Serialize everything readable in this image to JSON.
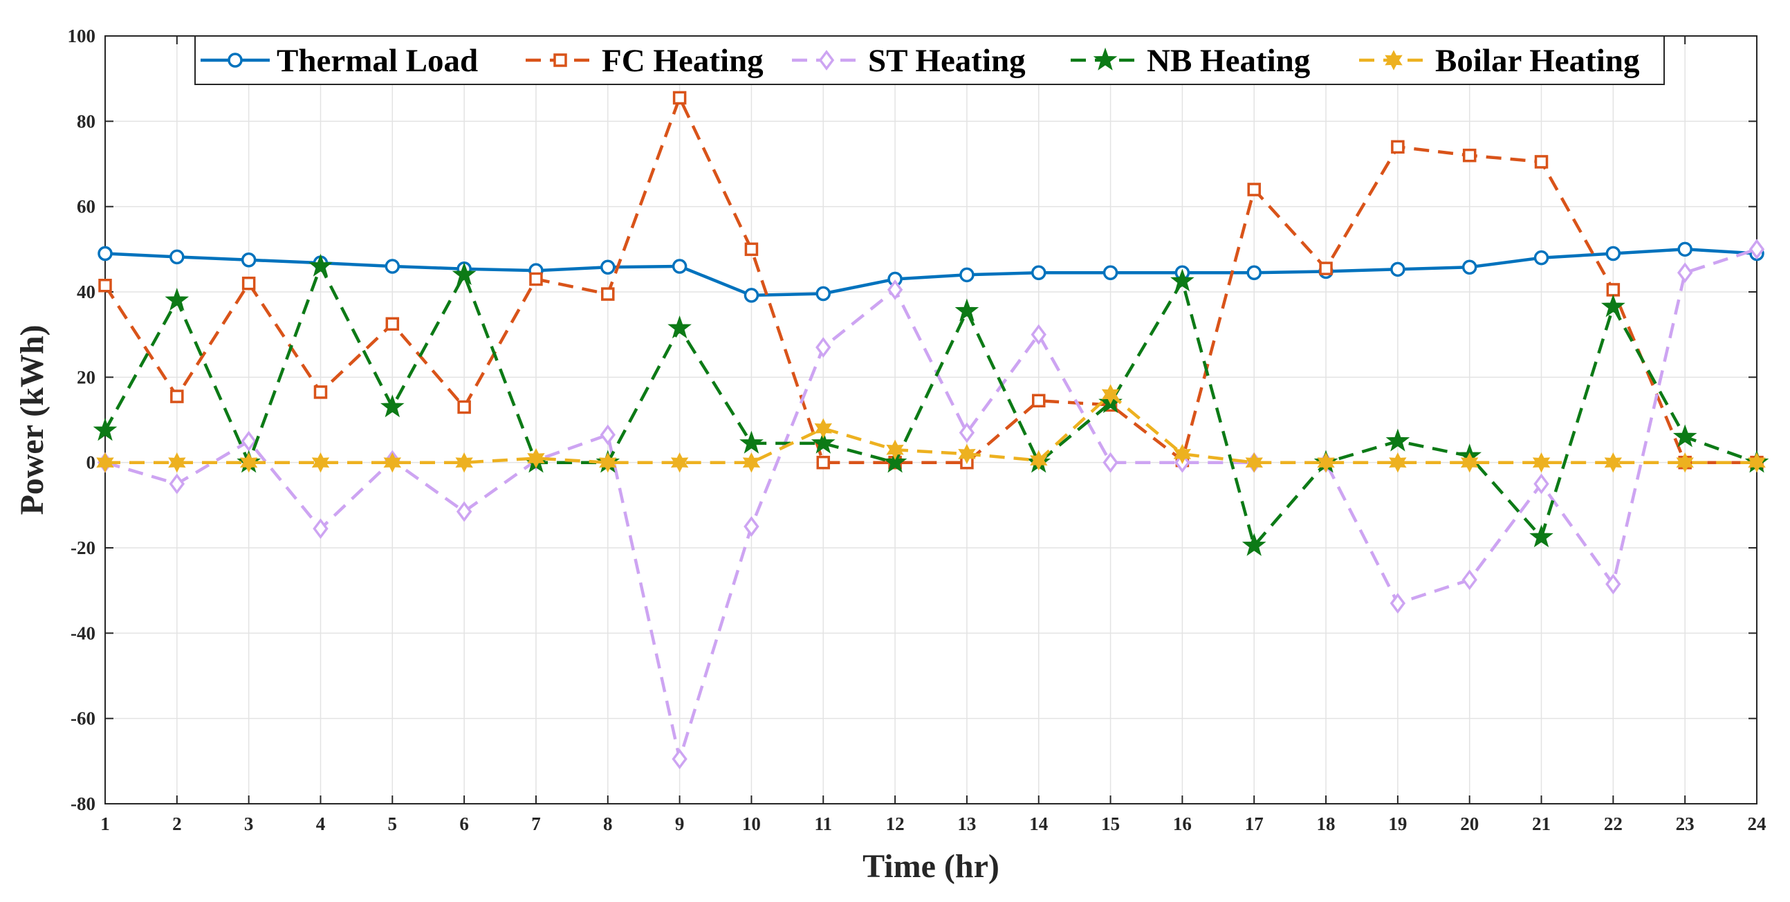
{
  "chart_data": {
    "type": "line",
    "title": "",
    "xlabel": "Time (hr)",
    "ylabel": "Power (kWh)",
    "x": [
      1,
      2,
      3,
      4,
      5,
      6,
      7,
      8,
      9,
      10,
      11,
      12,
      13,
      14,
      15,
      16,
      17,
      18,
      19,
      20,
      21,
      22,
      23,
      24
    ],
    "xlim": [
      1,
      24
    ],
    "ylim": [
      -80,
      100
    ],
    "yticks": [
      -80,
      -60,
      -40,
      -20,
      0,
      20,
      40,
      60,
      80,
      100
    ],
    "grid": true,
    "legend_position": "top",
    "series": [
      {
        "name": "Thermal Load",
        "color": "#0072BD",
        "marker": "circle",
        "line": "solid",
        "values": [
          49,
          48.2,
          47.5,
          46.8,
          46,
          45.4,
          45,
          45.8,
          46,
          39.2,
          39.6,
          43,
          44,
          44.5,
          44.5,
          44.5,
          44.5,
          44.8,
          45.3,
          45.8,
          48,
          49,
          50,
          49
        ]
      },
      {
        "name": "FC Heating",
        "color": "#D95319",
        "marker": "square",
        "line": "dashed",
        "values": [
          41.5,
          15.5,
          42,
          16.5,
          32.5,
          13,
          43,
          39.5,
          85.5,
          50,
          0,
          0,
          0,
          14.5,
          13.5,
          0.5,
          64,
          45.5,
          74,
          72,
          70.5,
          40.5,
          0,
          0
        ]
      },
      {
        "name": "ST Heating",
        "color": "#CDA4F2",
        "marker": "diamond",
        "line": "dashed",
        "values": [
          0,
          -5,
          5,
          -15.5,
          0.5,
          -11.5,
          0.5,
          6.5,
          -69.5,
          -15,
          27,
          40.5,
          7,
          30,
          0,
          0,
          0,
          0,
          -33,
          -27.5,
          -5,
          -28.5,
          44.5,
          50
        ]
      },
      {
        "name": "NB Heating",
        "color": "#0C7A16",
        "marker": "star",
        "line": "dashed",
        "values": [
          7.5,
          38,
          0,
          46,
          13,
          44,
          0,
          0,
          31.5,
          4.5,
          4.5,
          0,
          35.5,
          0,
          14,
          42.5,
          -19.5,
          0,
          5,
          1.5,
          -17.5,
          36.5,
          6,
          0
        ]
      },
      {
        "name": "Boilar Heating",
        "color": "#EDB120",
        "marker": "hexagram",
        "line": "dashed",
        "values": [
          0,
          0,
          0,
          0,
          0,
          0,
          1,
          0,
          0,
          0,
          8,
          3,
          2,
          0.5,
          16,
          2,
          0,
          0,
          0,
          0,
          0,
          0,
          0,
          0
        ]
      }
    ]
  }
}
